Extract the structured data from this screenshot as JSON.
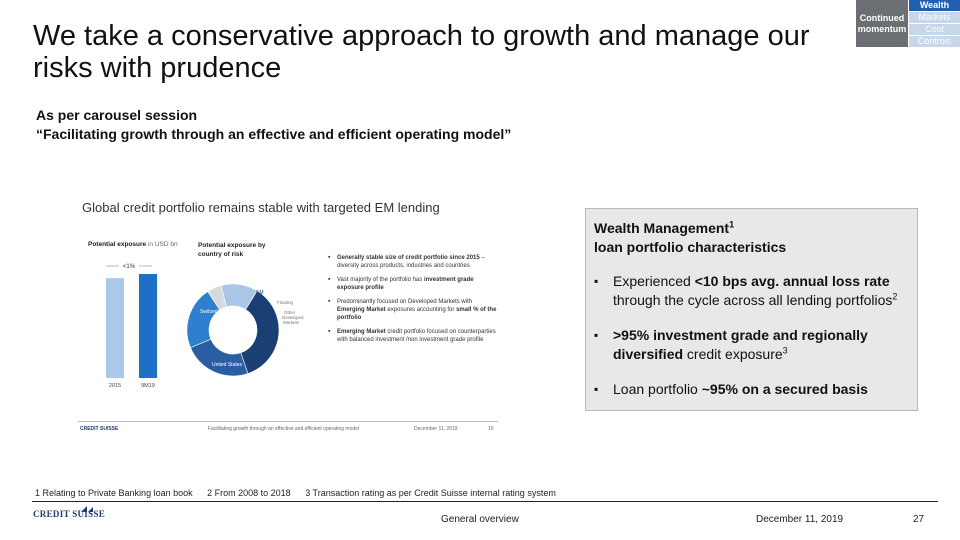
{
  "title": "We take a conservative approach to growth and manage our risks with prudence",
  "subtitle": {
    "line1": "As per carousel session",
    "line2": "“Facilitating growth through an effective and efficient operating model”"
  },
  "nav": {
    "section": "Continued momentum",
    "items": [
      "Wealth",
      "Markets",
      "Cost",
      "Controls"
    ],
    "active": "Wealth"
  },
  "embedded_slide": {
    "title": "Global credit portfolio remains stable with targeted EM lending",
    "exposure_label": "Potential exposure",
    "exposure_unit": "in USD bn",
    "country_label": "Potential exposure by country of risk",
    "bar_annotation": "<1%",
    "bar_categories": [
      "2015",
      "9M19"
    ],
    "bar_values": [
      0.96,
      1.0
    ],
    "donut_segments": [
      {
        "label": "Switzerland",
        "share": 0.36,
        "color": "#1a3f73"
      },
      {
        "label": "United States",
        "share": 0.24,
        "color": "#2a5ea3"
      },
      {
        "label": "Other Developed Markets",
        "share": 0.22,
        "color": "#2f7fcf"
      },
      {
        "label": "Floating",
        "share": 0.05,
        "color": "#d6d9de"
      },
      {
        "label": "EM",
        "share": 0.13,
        "color": "#a9c6e6"
      }
    ],
    "bullets": [
      {
        "bold": "Generally stable size of credit portfolio since 2015",
        "text": " – diversity across products, industries and countries"
      },
      {
        "pre": "Vast majority of the portfolio has ",
        "bold": "investment grade exposure profile"
      },
      {
        "pre": "Predominantly focused on Developed Markets with ",
        "bold": "Emerging Market",
        "text": " exposures accounting for ",
        "bold2": "small % of the portfolio"
      },
      {
        "bold": "Emerging Market",
        "text": " credit portfolio focused on counterparties with balanced investment /non investment grade profile"
      }
    ],
    "footer_logo": "CREDIT SUISSE",
    "footer_text": "Facilitating growth through an effective and efficient operating model",
    "footer_date": "December 11, 2019",
    "footer_page": "10"
  },
  "wm_box": {
    "heading_line1": "Wealth Management",
    "heading_sup": "1",
    "heading_line2": "loan portfolio characteristics",
    "item1_pre": "Experienced ",
    "item1_bold": "<10 bps avg. annual loss rate",
    "item1_post": " through the cycle across all lending portfolios",
    "item1_sup": "2",
    "item2_bold": ">95% investment grade and regionally diversified",
    "item2_post": " credit exposure",
    "item2_sup": "3",
    "item3_pre": "Loan portfolio ",
    "item3_bold": "~95% on a secured basis"
  },
  "footnotes": [
    "1 Relating to Private Banking loan book",
    "2 From 2008 to 2018",
    "3 Transaction rating as per Credit Suisse internal rating system"
  ],
  "footer": {
    "logo": "CREDIT SUISSE",
    "center": "General overview",
    "date": "December 11, 2019",
    "page": "27"
  },
  "colors": {
    "accent": "#1f5fb0",
    "nav_inactive": "#c7d6ea",
    "nav_section": "#6b6f73",
    "box_bg": "#e8e8e9"
  }
}
